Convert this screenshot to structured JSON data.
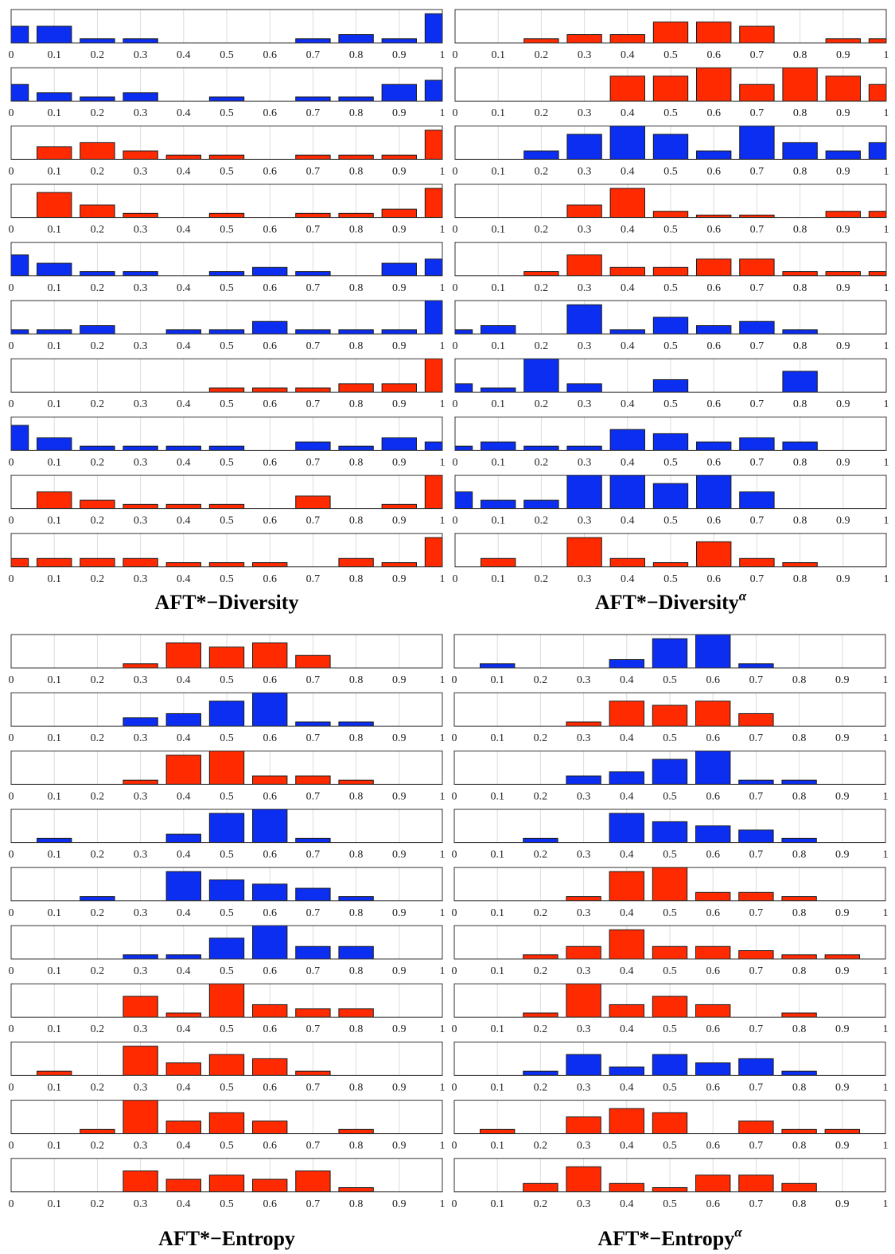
{
  "colors": {
    "red": "#ff2a00",
    "blue": "#0b2ef0",
    "axis": "#333333",
    "grid": "#dcdcdc"
  },
  "chart_data": [
    {
      "type": "bar",
      "title": "AFT*−Diversity",
      "superscript": "",
      "x": [
        0,
        0.1,
        0.2,
        0.3,
        0.4,
        0.5,
        0.6,
        0.7,
        0.8,
        0.9,
        1
      ],
      "tick_labels": [
        "0",
        "0.1",
        "0.2",
        "0.3",
        "0.4",
        "0.5",
        "0.6",
        "0.7",
        "0.8",
        "0.9",
        "1"
      ],
      "xlim": [
        0,
        1
      ],
      "grid": true,
      "series": [
        {
          "color": "blue",
          "values": [
            4,
            4,
            1,
            1,
            0,
            0,
            0,
            1,
            2,
            1,
            7
          ]
        },
        {
          "color": "blue",
          "values": [
            4,
            2,
            1,
            2,
            0,
            1,
            0,
            1,
            1,
            4,
            5
          ]
        },
        {
          "color": "red",
          "values": [
            0,
            3,
            4,
            2,
            1,
            1,
            0,
            1,
            1,
            1,
            7
          ]
        },
        {
          "color": "red",
          "values": [
            0,
            6,
            3,
            1,
            0,
            1,
            0,
            1,
            1,
            2,
            7
          ]
        },
        {
          "color": "blue",
          "values": [
            5,
            3,
            1,
            1,
            0,
            1,
            2,
            1,
            0,
            3,
            4
          ]
        },
        {
          "color": "blue",
          "values": [
            1,
            1,
            2,
            0,
            1,
            1,
            3,
            1,
            1,
            1,
            9
          ]
        },
        {
          "color": "red",
          "values": [
            0,
            0,
            0,
            0,
            0,
            1,
            1,
            1,
            2,
            2,
            14
          ]
        },
        {
          "color": "blue",
          "values": [
            6,
            3,
            1,
            1,
            1,
            1,
            0,
            2,
            1,
            3,
            2
          ]
        },
        {
          "color": "red",
          "values": [
            0,
            4,
            2,
            1,
            1,
            1,
            0,
            3,
            0,
            1,
            8
          ]
        },
        {
          "color": "red",
          "values": [
            2,
            2,
            2,
            2,
            1,
            1,
            1,
            0,
            2,
            1,
            7
          ]
        }
      ]
    },
    {
      "type": "bar",
      "title": "AFT*−Diversity",
      "superscript": "α",
      "x": [
        0,
        0.1,
        0.2,
        0.3,
        0.4,
        0.5,
        0.6,
        0.7,
        0.8,
        0.9,
        1
      ],
      "tick_labels": [
        "0",
        "0.1",
        "0.2",
        "0.3",
        "0.4",
        "0.5",
        "0.6",
        "0.7",
        "0.8",
        "0.9",
        "1"
      ],
      "xlim": [
        0,
        1
      ],
      "grid": true,
      "series": [
        {
          "color": "red",
          "values": [
            0,
            0,
            1,
            2,
            2,
            5,
            5,
            4,
            0,
            1,
            1
          ]
        },
        {
          "color": "red",
          "values": [
            0,
            0,
            0,
            0,
            6,
            6,
            8,
            4,
            8,
            6,
            4
          ]
        },
        {
          "color": "blue",
          "values": [
            0,
            0,
            2,
            6,
            8,
            6,
            2,
            8,
            4,
            2,
            4
          ]
        },
        {
          "color": "red",
          "values": [
            0,
            0,
            0,
            3,
            7,
            1.5,
            0.6,
            0.6,
            0,
            1.5,
            1.5
          ]
        },
        {
          "color": "red",
          "values": [
            0,
            0,
            1,
            5,
            2,
            2,
            4,
            4,
            1,
            1,
            1
          ]
        },
        {
          "color": "blue",
          "values": [
            1,
            2,
            0,
            7,
            1,
            4,
            2,
            3,
            1,
            0,
            0
          ]
        },
        {
          "color": "blue",
          "values": [
            2,
            1,
            8,
            2,
            0,
            3,
            0,
            0,
            5,
            0,
            0
          ]
        },
        {
          "color": "blue",
          "values": [
            1,
            2,
            1,
            1,
            5,
            4,
            2,
            3,
            2,
            0,
            0
          ]
        },
        {
          "color": "blue",
          "values": [
            4,
            2,
            2,
            8,
            8,
            6,
            8,
            4,
            0,
            0,
            0
          ]
        },
        {
          "color": "red",
          "values": [
            0,
            2,
            0,
            7,
            2,
            1,
            6,
            2,
            1,
            0,
            0
          ]
        }
      ]
    },
    {
      "type": "bar",
      "title": "AFT*−Entropy",
      "superscript": "",
      "x": [
        0,
        0.1,
        0.2,
        0.3,
        0.4,
        0.5,
        0.6,
        0.7,
        0.8,
        0.9,
        1
      ],
      "tick_labels": [
        "0",
        "0.1",
        "0.2",
        "0.3",
        "0.4",
        "0.5",
        "0.6",
        "0.7",
        "0.8",
        "0.9",
        "1"
      ],
      "xlim": [
        0,
        1
      ],
      "grid": true,
      "series": [
        {
          "color": "red",
          "values": [
            0,
            0,
            0,
            1,
            6,
            5,
            6,
            3,
            0,
            0,
            0
          ]
        },
        {
          "color": "blue",
          "values": [
            0,
            0,
            0,
            2,
            3,
            6,
            8,
            1,
            1,
            0,
            0
          ]
        },
        {
          "color": "red",
          "values": [
            0,
            0,
            0,
            1,
            7,
            8,
            2,
            2,
            1,
            0,
            0
          ]
        },
        {
          "color": "blue",
          "values": [
            0,
            1,
            0,
            0,
            2,
            7,
            8,
            1,
            0,
            0,
            0
          ]
        },
        {
          "color": "blue",
          "values": [
            0,
            0,
            1,
            0,
            7,
            5,
            4,
            3,
            1,
            0,
            0
          ]
        },
        {
          "color": "blue",
          "values": [
            0,
            0,
            0,
            1,
            1,
            5,
            8,
            3,
            3,
            0,
            0
          ]
        },
        {
          "color": "red",
          "values": [
            0,
            0,
            0,
            5,
            1,
            8,
            3,
            2,
            2,
            0,
            0
          ]
        },
        {
          "color": "red",
          "values": [
            0,
            1,
            0,
            7,
            3,
            5,
            4,
            1,
            0,
            0,
            0
          ]
        },
        {
          "color": "red",
          "values": [
            0,
            0,
            1,
            8,
            3,
            5,
            3,
            0,
            1,
            0,
            0
          ]
        },
        {
          "color": "red",
          "values": [
            0,
            0,
            0,
            5,
            3,
            4,
            3,
            5,
            1,
            0,
            0
          ]
        }
      ]
    },
    {
      "type": "bar",
      "title": "AFT*−Entropy",
      "superscript": "α",
      "x": [
        0,
        0.1,
        0.2,
        0.3,
        0.4,
        0.5,
        0.6,
        0.7,
        0.8,
        0.9,
        1
      ],
      "tick_labels": [
        "0",
        "0.1",
        "0.2",
        "0.3",
        "0.4",
        "0.5",
        "0.6",
        "0.7",
        "0.8",
        "0.9",
        "1"
      ],
      "xlim": [
        0,
        1
      ],
      "grid": true,
      "series": [
        {
          "color": "blue",
          "values": [
            0,
            1,
            0,
            0,
            2,
            7,
            8,
            1,
            0,
            0,
            0
          ]
        },
        {
          "color": "red",
          "values": [
            0,
            0,
            0,
            1,
            6,
            5,
            6,
            3,
            0,
            0,
            0
          ]
        },
        {
          "color": "blue",
          "values": [
            0,
            0,
            0,
            2,
            3,
            6,
            8,
            1,
            1,
            0,
            0
          ]
        },
        {
          "color": "blue",
          "values": [
            0,
            0,
            1,
            0,
            7,
            5,
            4,
            3,
            1,
            0,
            0
          ]
        },
        {
          "color": "red",
          "values": [
            0,
            0,
            0,
            1,
            7,
            8,
            2,
            2,
            1,
            0,
            0
          ]
        },
        {
          "color": "red",
          "values": [
            0,
            0,
            1,
            3,
            7,
            3,
            3,
            2,
            1,
            1,
            0
          ]
        },
        {
          "color": "red",
          "values": [
            0,
            0,
            1,
            8,
            3,
            5,
            3,
            0,
            1,
            0,
            0
          ]
        },
        {
          "color": "blue",
          "values": [
            0,
            0,
            1,
            5,
            2,
            5,
            3,
            4,
            1,
            0,
            0
          ]
        },
        {
          "color": "red",
          "values": [
            0,
            1,
            0,
            4,
            6,
            5,
            0,
            3,
            1,
            1,
            0
          ]
        },
        {
          "color": "red",
          "values": [
            0,
            0,
            2,
            6,
            2,
            1,
            4,
            4,
            2,
            0,
            0
          ]
        }
      ]
    }
  ]
}
